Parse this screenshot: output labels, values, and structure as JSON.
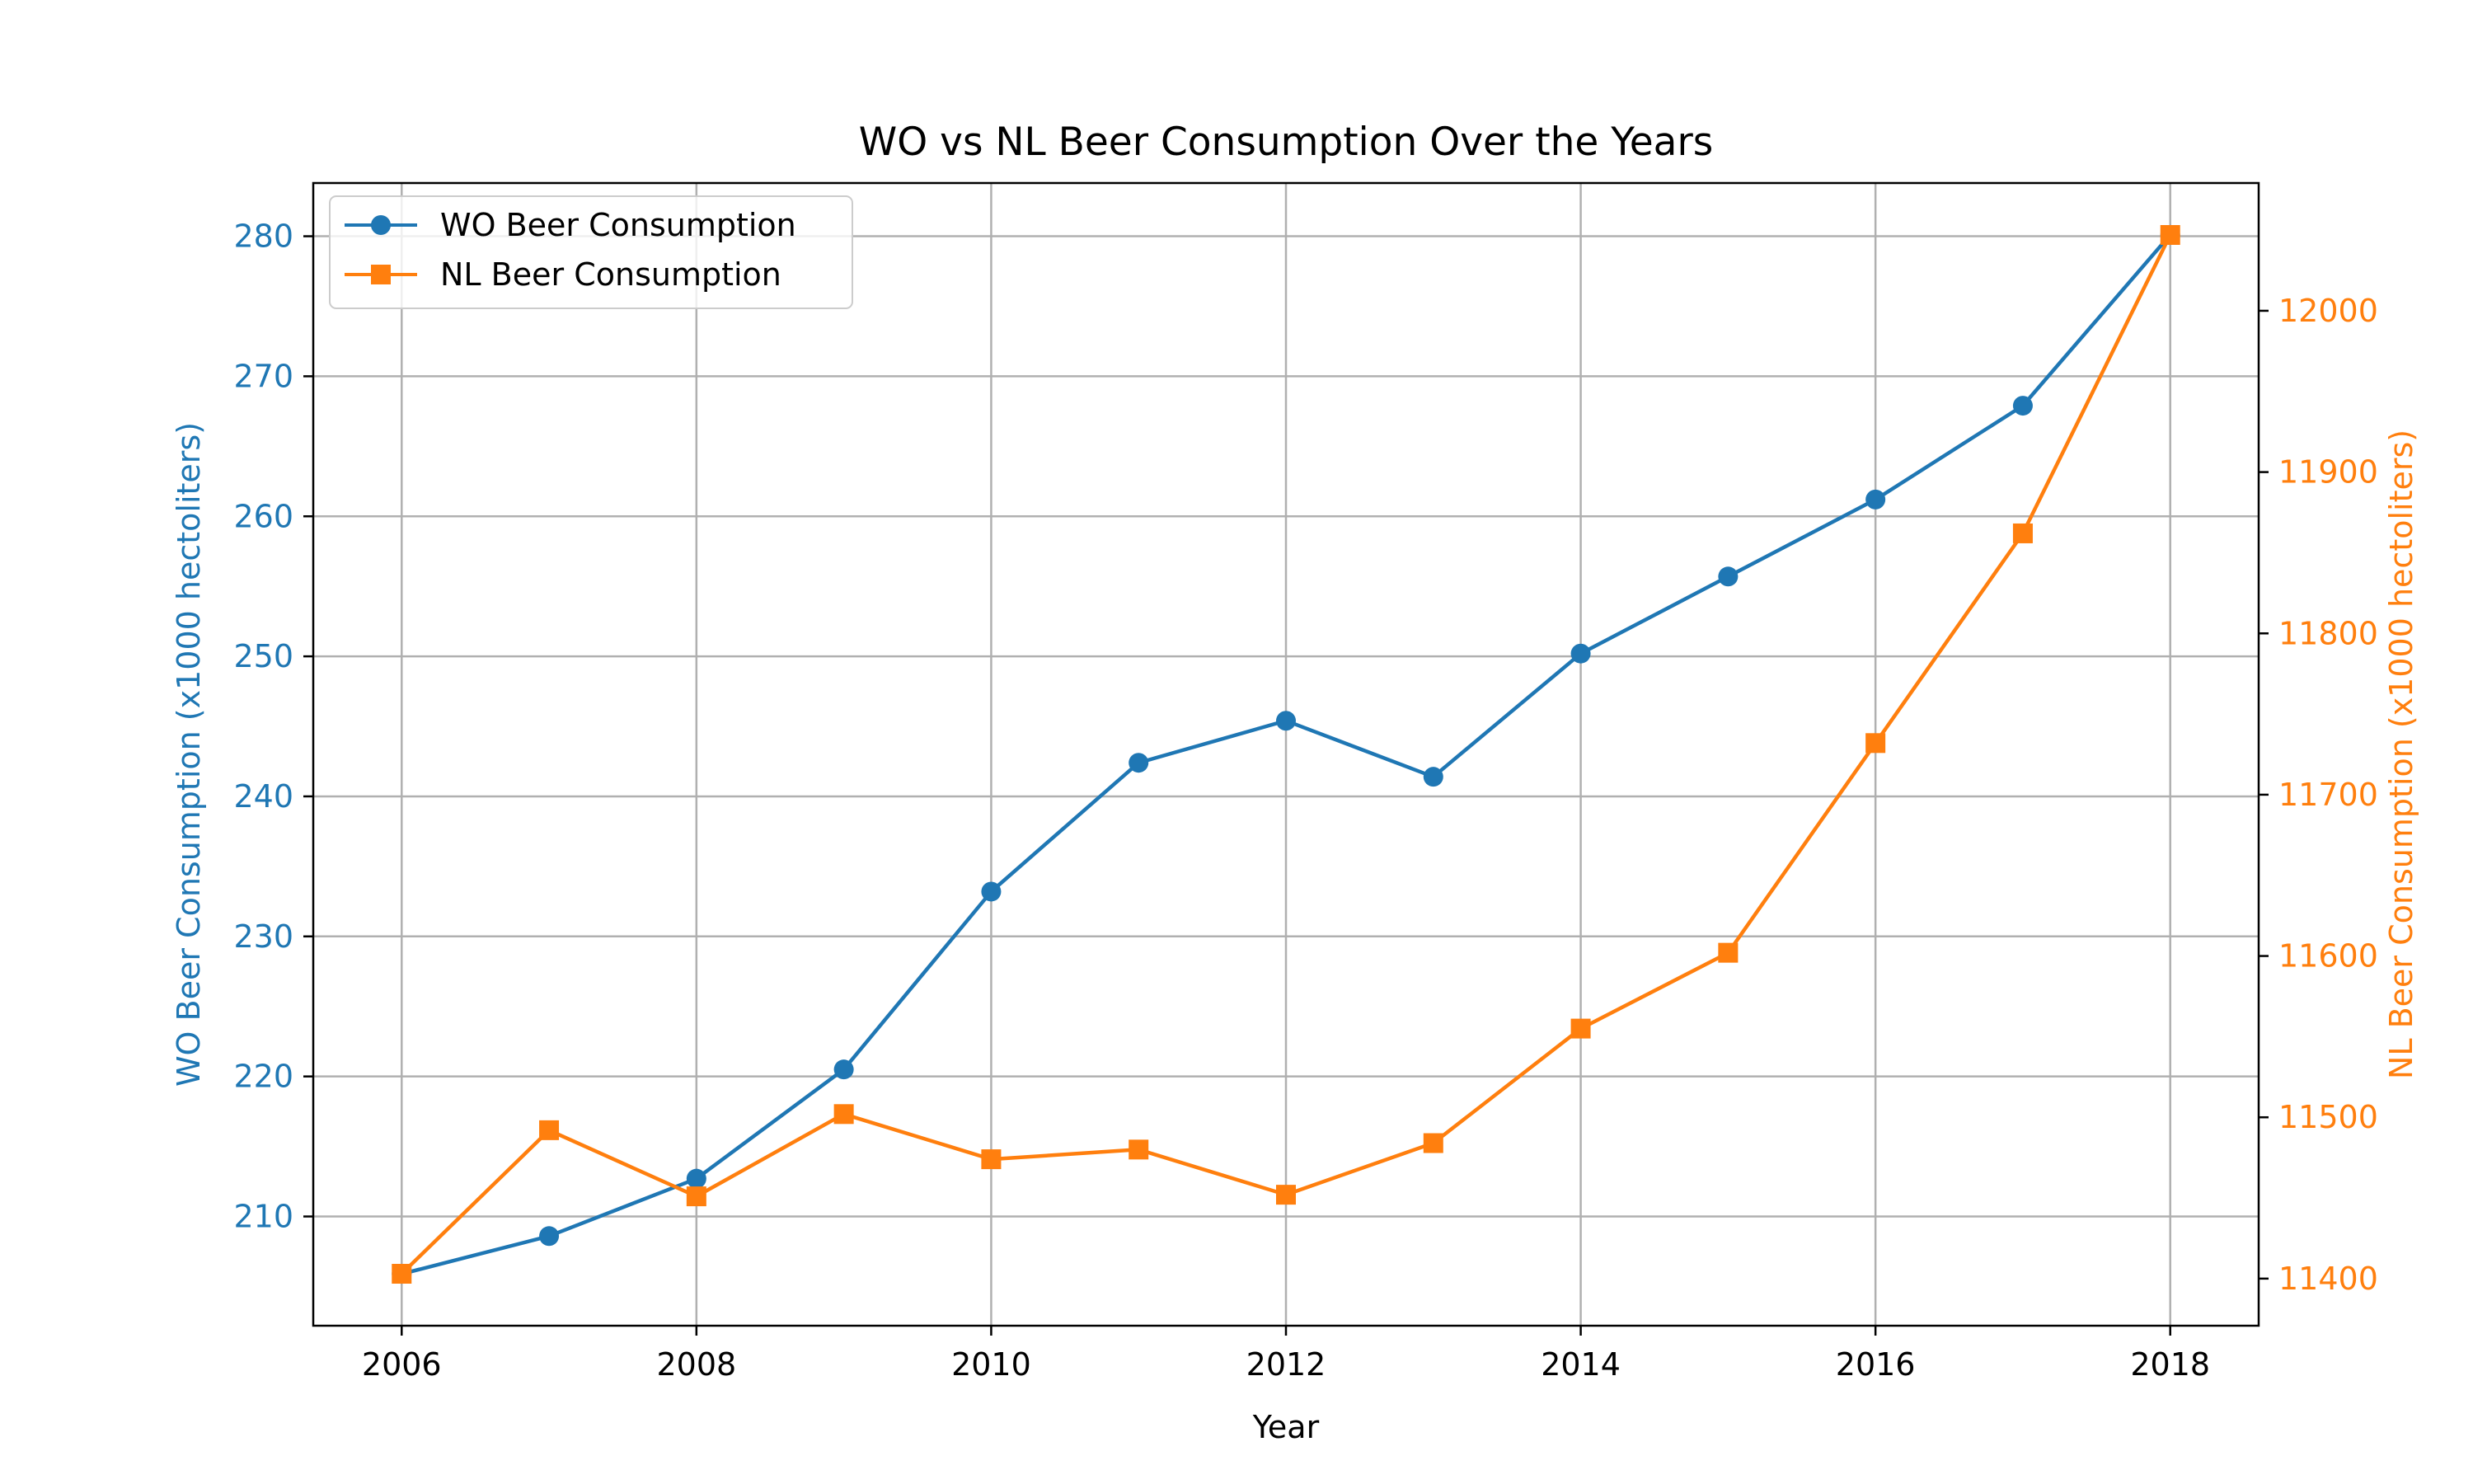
{
  "chart_data": {
    "type": "line",
    "title": "WO vs NL Beer Consumption Over the Years",
    "xlabel": "Year",
    "x": [
      2006,
      2007,
      2008,
      2009,
      2010,
      2011,
      2012,
      2013,
      2014,
      2015,
      2016,
      2017,
      2018
    ],
    "x_ticks": [
      2006,
      2008,
      2010,
      2012,
      2014,
      2016,
      2018
    ],
    "xlim": [
      2005.4,
      2018.6
    ],
    "grid": true,
    "legend_position": "top-left",
    "series": [
      {
        "name": "WO Beer Consumption",
        "axis": "left",
        "color": "#1f77b4",
        "marker": "circle",
        "values": [
          205.9,
          208.6,
          212.7,
          220.5,
          233.2,
          242.4,
          245.4,
          241.4,
          250.2,
          255.7,
          261.2,
          267.9,
          280.1
        ]
      },
      {
        "name": "NL Beer Consumption",
        "axis": "right",
        "color": "#ff7f0e",
        "marker": "square",
        "values": [
          11403,
          11492,
          11451,
          11502,
          11474,
          11480,
          11452,
          11484,
          11555,
          11602,
          11732,
          11862,
          12047
        ]
      }
    ],
    "y_left": {
      "label": "WO Beer Consumption (x1000 hectoliters)",
      "ticks": [
        210,
        220,
        230,
        240,
        250,
        260,
        270,
        280
      ],
      "ylim": [
        202.2,
        283.8
      ],
      "color": "#1f77b4"
    },
    "y_right": {
      "label": "NL Beer Consumption (x1000 hectoliters)",
      "ticks": [
        11400,
        11500,
        11600,
        11700,
        11800,
        11900,
        12000
      ],
      "ylim": [
        11370.8,
        12079.2
      ],
      "color": "#ff7f0e"
    }
  }
}
